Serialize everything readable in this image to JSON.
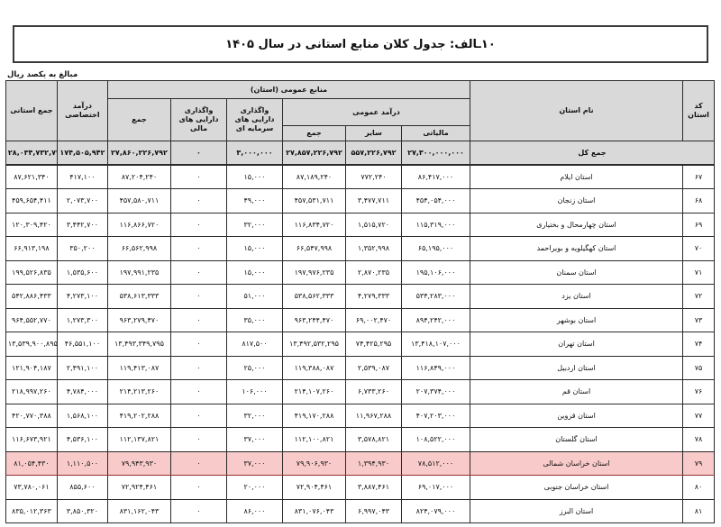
{
  "title": "۱۰ـالف: جدول کلان منابع استانی در سال ۱۴۰۵",
  "unit_note": "مبالغ به یکصد ریال",
  "colors": {
    "header_bg": "#d9d9d9",
    "total_row_bg": "#d9d9d9",
    "highlight_bg": "#f8caca",
    "highlight_border": "#943030",
    "grid_border": "#2a2a2a"
  },
  "table": {
    "headers": {
      "code": "کد استان",
      "name": "نام استان",
      "public_resources_group": "منابع عمومی (استان)",
      "public_revenue_group": "درآمد عمومی",
      "tax": "مالیاتی",
      "other": "سایر",
      "public_revenue_total": "جمع",
      "capital_assets": "واگذاری دارایی های سرمایه ای",
      "financial_assets": "واگذاری دارایی های مالی",
      "resources_total": "جمع",
      "dedicated_revenue": "درآمد اختصاصی",
      "province_total": "جمع استانی"
    },
    "total_row": {
      "label": "جمع کل",
      "tax": "۲۷,۳۰۰,۰۰۰,۰۰۰",
      "other": "۵۵۷,۲۲۶,۷۹۲",
      "revenue_total": "۲۷,۸۵۷,۲۲۶,۷۹۲",
      "capital_assets": "۳,۰۰۰,۰۰۰",
      "financial_assets": "۰",
      "resources_total": "۲۷,۸۶۰,۲۲۶,۷۹۲",
      "dedicated_revenue": "۱۷۴,۵۰۵,۹۴۲",
      "province_total": "۲۸,۰۳۴,۷۳۲,۷۳۴"
    },
    "rows": [
      {
        "code": "۶۷",
        "name": "استان ایلام",
        "tax": "۸۶,۴۱۷,۰۰۰",
        "other": "۷۷۲,۲۴۰",
        "revenue_total": "۸۷,۱۸۹,۲۴۰",
        "capital_assets": "۱۵,۰۰۰",
        "financial_assets": "۰",
        "resources_total": "۸۷,۲۰۴,۲۴۰",
        "dedicated_revenue": "۴۱۷,۱۰۰",
        "province_total": "۸۷,۶۲۱,۳۴۰",
        "highlighted": false
      },
      {
        "code": "۶۸",
        "name": "استان زنجان",
        "tax": "۴۵۴,۰۵۴,۰۰۰",
        "other": "۳,۴۷۷,۷۱۱",
        "revenue_total": "۴۵۷,۵۳۱,۷۱۱",
        "capital_assets": "۴۹,۰۰۰",
        "financial_assets": "۰",
        "resources_total": "۴۵۷,۵۸۰,۷۱۱",
        "dedicated_revenue": "۲,۰۷۳,۷۰۰",
        "province_total": "۴۵۹,۶۵۴,۴۱۱",
        "highlighted": false
      },
      {
        "code": "۶۹",
        "name": "استان چهارمحال و بختیاری",
        "tax": "۱۱۵,۳۱۹,۰۰۰",
        "other": "۱,۵۱۵,۷۲۰",
        "revenue_total": "۱۱۶,۸۳۴,۷۲۰",
        "capital_assets": "۳۲,۰۰۰",
        "financial_assets": "۰",
        "resources_total": "۱۱۶,۸۶۶,۷۲۰",
        "dedicated_revenue": "۳,۴۴۲,۷۰۰",
        "province_total": "۱۲۰,۳۰۹,۴۲۰",
        "highlighted": false
      },
      {
        "code": "۷۰",
        "name": "استان کهگیلویه و بویراحمد",
        "tax": "۶۵,۱۹۵,۰۰۰",
        "other": "۱,۳۵۲,۹۹۸",
        "revenue_total": "۶۶,۵۴۷,۹۹۸",
        "capital_assets": "۱۵,۰۰۰",
        "financial_assets": "۰",
        "resources_total": "۶۶,۵۶۲,۹۹۸",
        "dedicated_revenue": "۳۵۰,۲۰۰",
        "province_total": "۶۶,۹۱۳,۱۹۸",
        "highlighted": false
      },
      {
        "code": "۷۱",
        "name": "استان سمنان",
        "tax": "۱۹۵,۱۰۶,۰۰۰",
        "other": "۲,۸۷۰,۲۳۵",
        "revenue_total": "۱۹۷,۹۷۶,۲۳۵",
        "capital_assets": "۱۵,۰۰۰",
        "financial_assets": "۰",
        "resources_total": "۱۹۷,۹۹۱,۲۳۵",
        "dedicated_revenue": "۱,۵۳۵,۶۰۰",
        "province_total": "۱۹۹,۵۲۶,۸۳۵",
        "highlighted": false
      },
      {
        "code": "۷۲",
        "name": "استان یزد",
        "tax": "۵۳۴,۲۸۳,۰۰۰",
        "other": "۴,۲۷۹,۳۳۳",
        "revenue_total": "۵۳۸,۵۶۲,۳۳۳",
        "capital_assets": "۵۱,۰۰۰",
        "financial_assets": "۰",
        "resources_total": "۵۳۸,۶۱۳,۳۳۳",
        "dedicated_revenue": "۴,۲۷۳,۱۰۰",
        "province_total": "۵۴۲,۸۸۶,۴۳۳",
        "highlighted": false
      },
      {
        "code": "۷۳",
        "name": "استان بوشهر",
        "tax": "۸۹۴,۲۴۲,۰۰۰",
        "other": "۶۹,۰۰۲,۴۷۰",
        "revenue_total": "۹۶۳,۲۴۴,۴۷۰",
        "capital_assets": "۳۵,۰۰۰",
        "financial_assets": "۰",
        "resources_total": "۹۶۳,۲۷۹,۴۷۰",
        "dedicated_revenue": "۱,۲۷۳,۳۰۰",
        "province_total": "۹۶۴,۵۵۲,۷۷۰",
        "highlighted": false
      },
      {
        "code": "۷۴",
        "name": "استان تهران",
        "tax": "۱۳,۴۱۸,۱۰۷,۰۰۰",
        "other": "۷۴,۴۲۵,۲۹۵",
        "revenue_total": "۱۳,۴۹۲,۵۳۲,۲۹۵",
        "capital_assets": "۸۱۷,۵۰۰",
        "financial_assets": "۰",
        "resources_total": "۱۳,۴۹۳,۳۴۹,۷۹۵",
        "dedicated_revenue": "۴۶,۵۵۱,۱۰۰",
        "province_total": "۱۳,۵۳۹,۹۰۰,۸۹۵",
        "highlighted": false
      },
      {
        "code": "۷۵",
        "name": "استان اردبیل",
        "tax": "۱۱۶,۸۴۹,۰۰۰",
        "other": "۲,۵۳۹,۰۸۷",
        "revenue_total": "۱۱۹,۳۸۸,۰۸۷",
        "capital_assets": "۲۵,۰۰۰",
        "financial_assets": "۰",
        "resources_total": "۱۱۹,۴۱۳,۰۸۷",
        "dedicated_revenue": "۲,۴۹۱,۱۰۰",
        "province_total": "۱۲۱,۹۰۴,۱۸۷",
        "highlighted": false
      },
      {
        "code": "۷۶",
        "name": "استان قم",
        "tax": "۲۰۷,۳۷۴,۰۰۰",
        "other": "۶,۷۳۳,۲۶۰",
        "revenue_total": "۲۱۴,۱۰۷,۲۶۰",
        "capital_assets": "۱۰۶,۰۰۰",
        "financial_assets": "۰",
        "resources_total": "۲۱۴,۲۱۳,۲۶۰",
        "dedicated_revenue": "۴,۷۸۴,۰۰۰",
        "province_total": "۲۱۸,۹۹۷,۲۶۰",
        "highlighted": false
      },
      {
        "code": "۷۷",
        "name": "استان قزوین",
        "tax": "۴۰۷,۲۰۳,۰۰۰",
        "other": "۱۱,۹۶۷,۲۸۸",
        "revenue_total": "۴۱۹,۱۷۰,۲۸۸",
        "capital_assets": "۳۲,۰۰۰",
        "financial_assets": "۰",
        "resources_total": "۴۱۹,۲۰۲,۲۸۸",
        "dedicated_revenue": "۱,۵۶۸,۱۰۰",
        "province_total": "۴۲۰,۷۷۰,۳۸۸",
        "highlighted": false
      },
      {
        "code": "۷۸",
        "name": "استان گلستان",
        "tax": "۱۰۸,۵۲۲,۰۰۰",
        "other": "۳,۵۷۸,۸۲۱",
        "revenue_total": "۱۱۲,۱۰۰,۸۲۱",
        "capital_assets": "۳۷,۰۰۰",
        "financial_assets": "۰",
        "resources_total": "۱۱۲,۱۳۷,۸۲۱",
        "dedicated_revenue": "۴,۵۳۶,۱۰۰",
        "province_total": "۱۱۶,۶۷۳,۹۲۱",
        "highlighted": false
      },
      {
        "code": "۷۹",
        "name": "استان خراسان شمالی",
        "tax": "۷۸,۵۱۲,۰۰۰",
        "other": "۱,۳۹۴,۹۳۰",
        "revenue_total": "۷۹,۹۰۶,۹۳۰",
        "capital_assets": "۳۷,۰۰۰",
        "financial_assets": "۰",
        "resources_total": "۷۹,۹۴۳,۹۳۰",
        "dedicated_revenue": "۱,۱۱۰,۵۰۰",
        "province_total": "۸۱,۰۵۴,۴۳۰",
        "highlighted": true
      },
      {
        "code": "۸۰",
        "name": "استان خراسان جنوبی",
        "tax": "۶۹,۰۱۷,۰۰۰",
        "other": "۳,۸۸۷,۴۶۱",
        "revenue_total": "۷۲,۹۰۴,۴۶۱",
        "capital_assets": "۲۰,۰۰۰",
        "financial_assets": "۰",
        "resources_total": "۷۲,۹۲۴,۴۶۱",
        "dedicated_revenue": "۸۵۵,۶۰۰",
        "province_total": "۷۳,۷۸۰,۰۶۱",
        "highlighted": false
      },
      {
        "code": "۸۱",
        "name": "استان البرز",
        "tax": "۸۲۴,۰۷۹,۰۰۰",
        "other": "۶,۹۹۷,۰۴۳",
        "revenue_total": "۸۳۱,۰۷۶,۰۴۳",
        "capital_assets": "۸۶,۰۰۰",
        "financial_assets": "۰",
        "resources_total": "۸۳۱,۱۶۲,۰۴۳",
        "dedicated_revenue": "۳,۸۵۰,۳۲۰",
        "province_total": "۸۳۵,۰۱۲,۳۶۳",
        "highlighted": false
      }
    ]
  }
}
